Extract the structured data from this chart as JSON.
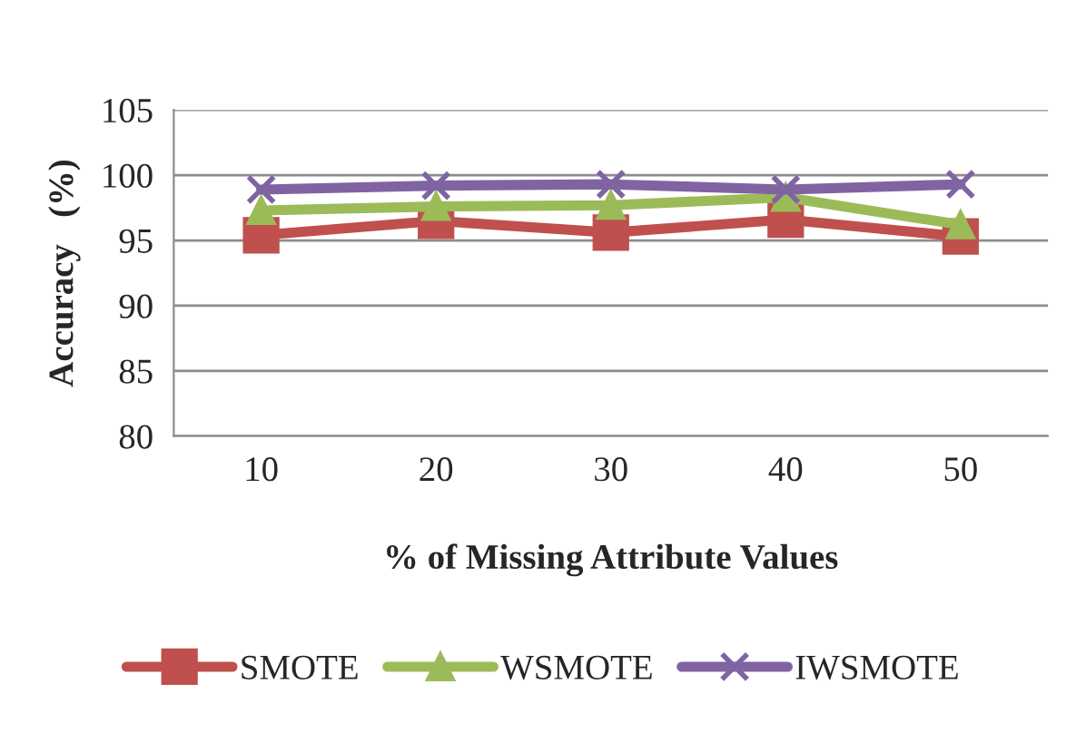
{
  "chart_data": {
    "type": "line",
    "xlabel": "% of Missing Attribute Values",
    "ylabel": "Accuracy   (%)",
    "categories": [
      "10",
      "20",
      "30",
      "40",
      "50"
    ],
    "series": [
      {
        "name": "SMOTE",
        "color": "#c0504d",
        "marker": "square",
        "values": [
          95.4,
          96.5,
          95.6,
          96.6,
          95.3
        ]
      },
      {
        "name": "WSMOTE",
        "color": "#9bbb59",
        "marker": "triangle",
        "values": [
          97.3,
          97.6,
          97.7,
          98.3,
          96.2
        ]
      },
      {
        "name": "IWSMOTE",
        "color": "#8064a2",
        "marker": "cross",
        "values": [
          98.9,
          99.2,
          99.3,
          98.9,
          99.3
        ]
      }
    ],
    "ylim": [
      80,
      105
    ],
    "yticks": [
      80,
      85,
      90,
      95,
      100,
      105
    ],
    "grid": "y",
    "legend": "bottom",
    "line_style": "solid"
  }
}
